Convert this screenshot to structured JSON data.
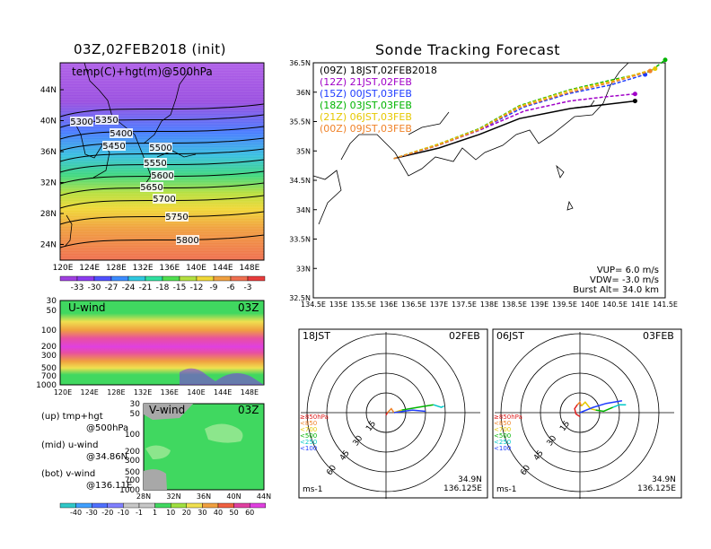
{
  "left": {
    "title": "03Z,02FEB2018 (init)",
    "map_label": "temp(C)+hgt(m)@500hPa",
    "lat_ticks": [
      "44N",
      "40N",
      "36N",
      "32N",
      "28N",
      "24N"
    ],
    "lon_ticks": [
      "120E",
      "124E",
      "128E",
      "132E",
      "136E",
      "140E",
      "144E",
      "148E"
    ],
    "contours": [
      "5300",
      "5350",
      "5400",
      "5450",
      "5500",
      "5550",
      "5600",
      "5650",
      "5700",
      "5750",
      "5800"
    ],
    "temp_colorbar": [
      "-33",
      "-30",
      "-27",
      "-24",
      "-21",
      "-18",
      "-15",
      "-12",
      "-9",
      "-6",
      "-3"
    ],
    "uwind": {
      "label": "U-wind",
      "time": "03Z",
      "p_ticks": [
        "30",
        "50",
        "100",
        "200",
        "300",
        "500",
        "700",
        "1000"
      ],
      "lon_ticks": [
        "120E",
        "124E",
        "128E",
        "132E",
        "136E",
        "140E",
        "144E",
        "148E"
      ]
    },
    "vwind": {
      "label": "V-wind",
      "time": "03Z",
      "p_ticks": [
        "30",
        "50",
        "100",
        "200",
        "300",
        "500",
        "700",
        "1000"
      ],
      "lat_ticks": [
        "28N",
        "32N",
        "36N",
        "40N",
        "44N"
      ]
    },
    "wind_colorbar": [
      "-40",
      "-30",
      "-20",
      "-10",
      "-1",
      "1",
      "10",
      "20",
      "30",
      "40",
      "50",
      "60"
    ],
    "notes": [
      {
        "a": "(up) tmp+hgt",
        "b": "@500hPa"
      },
      {
        "a": "(mid) u-wind",
        "b": "@34.86N"
      },
      {
        "a": "(bot) v-wind",
        "b": "@136.11E"
      }
    ]
  },
  "right": {
    "title": "Sonde Tracking Forecast",
    "legend": [
      {
        "text": "(09Z)  18JST,02FEB2018",
        "color": "#000000"
      },
      {
        "text": "(12Z)  21JST,02FEB",
        "color": "#a000c8"
      },
      {
        "text": "(15Z)  00JST,03FEB",
        "color": "#1e3cff"
      },
      {
        "text": "(18Z)  03JST,03FEB",
        "color": "#00b400"
      },
      {
        "text": "(21Z)  06JST,03FEB",
        "color": "#e6c800"
      },
      {
        "text": "(00Z)  09JST,03FEB",
        "color": "#f08228"
      }
    ],
    "lat_ticks": [
      "36.5N",
      "36N",
      "35.5N",
      "35N",
      "34.5N",
      "34N",
      "33.5N",
      "33N",
      "32.5N"
    ],
    "lon_ticks": [
      "134.5E",
      "135E",
      "135.5E",
      "136E",
      "136.5E",
      "137E",
      "137.5E",
      "138E",
      "138.5E",
      "139E",
      "139.5E",
      "140E",
      "140.5E",
      "141E",
      "141.5E"
    ],
    "params": [
      "VUP=  6.0  m/s",
      "VDW=  -3.0  m/s",
      "Burst Alt=  34.0  km"
    ],
    "hodographs": [
      {
        "time": "18JST",
        "date": "02FEB",
        "ring_labels": [
          "15",
          "30",
          "45",
          "60"
        ],
        "units": "ms-1",
        "lat": "34.9N",
        "lon": "136.125E"
      },
      {
        "time": "06JST",
        "date": "03FEB",
        "ring_labels": [
          "15",
          "30",
          "45",
          "60"
        ],
        "units": "ms-1",
        "lat": "34.9N",
        "lon": "136.125E"
      }
    ],
    "hodo_legend": [
      {
        "text": "≥850hPa",
        "color": "#e02020"
      },
      {
        "text": "<850",
        "color": "#f08228"
      },
      {
        "text": "<700",
        "color": "#e6c800"
      },
      {
        "text": "<500",
        "color": "#00b400"
      },
      {
        "text": "<250",
        "color": "#00c8c8"
      },
      {
        "text": "<100",
        "color": "#1e3cff"
      }
    ]
  },
  "chart_data": [
    {
      "type": "heatmap",
      "title": "03Z,02FEB2018 (init)",
      "variable": "temp(C)+hgt(m)@500hPa",
      "x_range": [
        120,
        150
      ],
      "y_range": [
        22,
        47
      ],
      "colorbar": [
        -33,
        -30,
        -27,
        -24,
        -21,
        -18,
        -15,
        -12,
        -9,
        -6,
        -3
      ],
      "contour_levels": [
        5300,
        5350,
        5400,
        5450,
        5500,
        5550,
        5600,
        5650,
        5700,
        5750,
        5800
      ]
    },
    {
      "type": "heatmap",
      "title": "U-wind",
      "time": "03Z",
      "x_range": [
        120,
        150
      ],
      "y": "pressure 30-1000 hPa"
    },
    {
      "type": "heatmap",
      "title": "V-wind",
      "time": "03Z",
      "x_range": [
        28,
        44
      ],
      "y": "pressure 30-1000 hPa"
    },
    {
      "type": "line",
      "title": "Sonde Tracking Forecast",
      "x_range": [
        134.5,
        141.5
      ],
      "y_range": [
        32.5,
        36.5
      ],
      "series": [
        {
          "name": "(09Z)  18JST,02FEB2018",
          "points": [
            [
              136.1,
              34.87
            ],
            [
              137.0,
              35.05
            ],
            [
              137.8,
              35.28
            ],
            [
              138.6,
              35.55
            ],
            [
              139.6,
              35.72
            ],
            [
              140.2,
              35.78
            ],
            [
              140.9,
              35.85
            ]
          ]
        },
        {
          "name": "(12Z)  21JST,02FEB",
          "points": [
            [
              136.1,
              34.87
            ],
            [
              137.0,
              35.1
            ],
            [
              137.8,
              35.35
            ],
            [
              138.7,
              35.68
            ],
            [
              139.6,
              35.85
            ],
            [
              140.3,
              35.92
            ],
            [
              140.9,
              35.97
            ]
          ]
        },
        {
          "name": "(15Z)  00JST,03FEB",
          "points": [
            [
              136.1,
              34.87
            ],
            [
              137.0,
              35.1
            ],
            [
              137.8,
              35.36
            ],
            [
              138.7,
              35.75
            ],
            [
              139.6,
              35.98
            ],
            [
              140.4,
              36.12
            ],
            [
              141.1,
              36.3
            ]
          ]
        },
        {
          "name": "(18Z)  03JST,03FEB",
          "points": [
            [
              136.1,
              34.87
            ],
            [
              137.0,
              35.12
            ],
            [
              137.8,
              35.38
            ],
            [
              138.6,
              35.77
            ],
            [
              139.6,
              36.04
            ],
            [
              140.5,
              36.22
            ],
            [
              141.2,
              36.35
            ],
            [
              141.5,
              36.55
            ]
          ]
        },
        {
          "name": "(21Z)  06JST,03FEB",
          "points": [
            [
              136.1,
              34.87
            ],
            [
              137.0,
              35.12
            ],
            [
              137.8,
              35.37
            ],
            [
              138.6,
              35.76
            ],
            [
              139.6,
              36.03
            ],
            [
              140.5,
              36.2
            ],
            [
              141.3,
              36.4
            ]
          ]
        },
        {
          "name": "(00Z)  09JST,03FEB",
          "points": [
            [
              136.1,
              34.87
            ],
            [
              137.0,
              35.1
            ],
            [
              137.8,
              35.36
            ],
            [
              138.6,
              35.74
            ],
            [
              139.6,
              36.0
            ],
            [
              140.5,
              36.18
            ],
            [
              141.2,
              36.36
            ]
          ]
        }
      ],
      "params": {
        "VUP_m_s": 6.0,
        "VDW_m_s": -3.0,
        "burst_alt_km": 34.0
      }
    },
    {
      "type": "line",
      "title": "18JST 02FEB",
      "rings_m_s": [
        15,
        30,
        45,
        60
      ],
      "segments": [
        {
          "level": "≥850hPa",
          "points": [
            [
              0,
              -2
            ],
            [
              1,
              0
            ]
          ]
        },
        {
          "level": "<850",
          "points": [
            [
              1,
              0
            ],
            [
              4,
              3
            ],
            [
              6,
              0
            ]
          ]
        },
        {
          "level": "<700",
          "points": [
            [
              6,
              0
            ],
            [
              12,
              2
            ]
          ]
        },
        {
          "level": "<500",
          "points": [
            [
              12,
              2
            ],
            [
              24,
              4
            ],
            [
              36,
              6
            ]
          ]
        },
        {
          "level": "<250",
          "points": [
            [
              36,
              6
            ],
            [
              42,
              4
            ],
            [
              44,
              5
            ]
          ]
        },
        {
          "level": "<100",
          "points": [
            [
              6,
              0
            ],
            [
              20,
              2
            ],
            [
              30,
              1
            ]
          ]
        }
      ]
    },
    {
      "type": "line",
      "title": "06JST 03FEB",
      "rings_m_s": [
        15,
        30,
        45,
        60
      ],
      "segments": [
        {
          "level": "≥850hPa",
          "points": [
            [
              0,
              -3
            ],
            [
              -3,
              -1
            ],
            [
              -4,
              3
            ],
            [
              -2,
              6
            ]
          ]
        },
        {
          "level": "<850",
          "points": [
            [
              -2,
              6
            ],
            [
              0,
              8
            ],
            [
              1,
              5
            ]
          ]
        },
        {
          "level": "<700",
          "points": [
            [
              1,
              5
            ],
            [
              4,
              8
            ],
            [
              8,
              3
            ],
            [
              12,
              2
            ]
          ]
        },
        {
          "level": "<500",
          "points": [
            [
              12,
              2
            ],
            [
              18,
              1
            ],
            [
              25,
              4
            ]
          ]
        },
        {
          "level": "<250",
          "points": [
            [
              25,
              4
            ],
            [
              30,
              6
            ],
            [
              35,
              6
            ]
          ]
        },
        {
          "level": "<100",
          "points": [
            [
              0,
              0
            ],
            [
              10,
              4
            ],
            [
              20,
              7
            ],
            [
              32,
              9
            ]
          ]
        }
      ]
    }
  ]
}
